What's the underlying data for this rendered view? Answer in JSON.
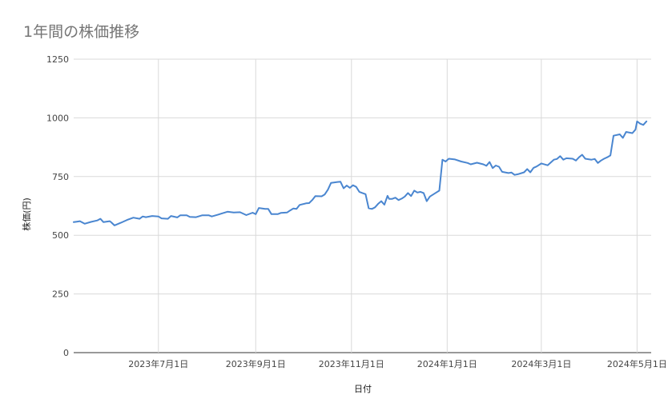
{
  "chart_data": {
    "type": "line",
    "title": "1年間の株価推移",
    "xlabel": "日付",
    "ylabel": "株価(円)",
    "ylim": [
      0,
      1250
    ],
    "yticks": [
      0,
      250,
      500,
      750,
      1000,
      1250
    ],
    "xlim": [
      "2023-05-08",
      "2024-05-10"
    ],
    "xticks": [
      {
        "date": "2023-07-01",
        "label": "2023年7月1日"
      },
      {
        "date": "2023-09-01",
        "label": "2023年9月1日"
      },
      {
        "date": "2023-11-01",
        "label": "2023年11月1日"
      },
      {
        "date": "2024-01-01",
        "label": "2024年1月1日"
      },
      {
        "date": "2024-03-01",
        "label": "2024年3月1日"
      },
      {
        "date": "2024-05-01",
        "label": "2024年5月1日"
      }
    ],
    "grid": true,
    "legend": "none",
    "color": "#4a86d0",
    "series": [
      {
        "points": [
          [
            "2023-05-08",
            556
          ],
          [
            "2023-05-10",
            558
          ],
          [
            "2023-05-12",
            560
          ],
          [
            "2023-05-15",
            549
          ],
          [
            "2023-05-19",
            557
          ],
          [
            "2023-05-23",
            563
          ],
          [
            "2023-05-25",
            570
          ],
          [
            "2023-05-27",
            556
          ],
          [
            "2023-05-31",
            560
          ],
          [
            "2023-06-01",
            555
          ],
          [
            "2023-06-03",
            542
          ],
          [
            "2023-06-07",
            553
          ],
          [
            "2023-06-11",
            565
          ],
          [
            "2023-06-15",
            575
          ],
          [
            "2023-06-19",
            570
          ],
          [
            "2023-06-21",
            580
          ],
          [
            "2023-06-23",
            577
          ],
          [
            "2023-06-27",
            582
          ],
          [
            "2023-07-01",
            580
          ],
          [
            "2023-07-03",
            572
          ],
          [
            "2023-07-07",
            570
          ],
          [
            "2023-07-09",
            582
          ],
          [
            "2023-07-13",
            576
          ],
          [
            "2023-07-15",
            585
          ],
          [
            "2023-07-19",
            585
          ],
          [
            "2023-07-21",
            578
          ],
          [
            "2023-07-25",
            577
          ],
          [
            "2023-07-29",
            585
          ],
          [
            "2023-08-02",
            585
          ],
          [
            "2023-08-04",
            580
          ],
          [
            "2023-08-08",
            588
          ],
          [
            "2023-08-10",
            592
          ],
          [
            "2023-08-14",
            600
          ],
          [
            "2023-08-18",
            597
          ],
          [
            "2023-08-22",
            598
          ],
          [
            "2023-08-26",
            586
          ],
          [
            "2023-08-30",
            596
          ],
          [
            "2023-09-01",
            590
          ],
          [
            "2023-09-03",
            616
          ],
          [
            "2023-09-07",
            612
          ],
          [
            "2023-09-09",
            612
          ],
          [
            "2023-09-11",
            590
          ],
          [
            "2023-09-15",
            590
          ],
          [
            "2023-09-17",
            595
          ],
          [
            "2023-09-21",
            597
          ],
          [
            "2023-09-23",
            606
          ],
          [
            "2023-09-25",
            614
          ],
          [
            "2023-09-27",
            612
          ],
          [
            "2023-09-29",
            629
          ],
          [
            "2023-10-03",
            636
          ],
          [
            "2023-10-05",
            637
          ],
          [
            "2023-10-07",
            650
          ],
          [
            "2023-10-09",
            667
          ],
          [
            "2023-10-13",
            666
          ],
          [
            "2023-10-15",
            674
          ],
          [
            "2023-10-17",
            694
          ],
          [
            "2023-10-19",
            723
          ],
          [
            "2023-10-23",
            727
          ],
          [
            "2023-10-25",
            728
          ],
          [
            "2023-10-27",
            700
          ],
          [
            "2023-10-29",
            712
          ],
          [
            "2023-10-31",
            702
          ],
          [
            "2023-11-02",
            713
          ],
          [
            "2023-11-04",
            706
          ],
          [
            "2023-11-06",
            685
          ],
          [
            "2023-11-08",
            680
          ],
          [
            "2023-11-10",
            675
          ],
          [
            "2023-11-12",
            615
          ],
          [
            "2023-11-14",
            612
          ],
          [
            "2023-11-16",
            619
          ],
          [
            "2023-11-18",
            634
          ],
          [
            "2023-11-20",
            645
          ],
          [
            "2023-11-22",
            630
          ],
          [
            "2023-11-24",
            668
          ],
          [
            "2023-11-25",
            655
          ],
          [
            "2023-11-27",
            655
          ],
          [
            "2023-11-29",
            660
          ],
          [
            "2023-12-01",
            650
          ],
          [
            "2023-12-03",
            656
          ],
          [
            "2023-12-05",
            665
          ],
          [
            "2023-12-07",
            680
          ],
          [
            "2023-12-09",
            667
          ],
          [
            "2023-12-11",
            690
          ],
          [
            "2023-12-13",
            682
          ],
          [
            "2023-12-15",
            685
          ],
          [
            "2023-12-17",
            680
          ],
          [
            "2023-12-19",
            645
          ],
          [
            "2023-12-21",
            665
          ],
          [
            "2023-12-25",
            682
          ],
          [
            "2023-12-27",
            690
          ],
          [
            "2023-12-29",
            822
          ],
          [
            "2023-12-31",
            814
          ],
          [
            "2024-01-02",
            826
          ],
          [
            "2024-01-06",
            823
          ],
          [
            "2024-01-10",
            814
          ],
          [
            "2024-01-14",
            808
          ],
          [
            "2024-01-16",
            802
          ],
          [
            "2024-01-20",
            809
          ],
          [
            "2024-01-24",
            802
          ],
          [
            "2024-01-26",
            796
          ],
          [
            "2024-01-28",
            812
          ],
          [
            "2024-01-30",
            786
          ],
          [
            "2024-02-01",
            797
          ],
          [
            "2024-02-03",
            792
          ],
          [
            "2024-02-05",
            770
          ],
          [
            "2024-02-09",
            765
          ],
          [
            "2024-02-11",
            767
          ],
          [
            "2024-02-13",
            757
          ],
          [
            "2024-02-15",
            760
          ],
          [
            "2024-02-19",
            768
          ],
          [
            "2024-02-21",
            782
          ],
          [
            "2024-02-23",
            768
          ],
          [
            "2024-02-25",
            787
          ],
          [
            "2024-02-27",
            793
          ],
          [
            "2024-03-01",
            806
          ],
          [
            "2024-03-05",
            798
          ],
          [
            "2024-03-07",
            810
          ],
          [
            "2024-03-09",
            822
          ],
          [
            "2024-03-11",
            825
          ],
          [
            "2024-03-13",
            837
          ],
          [
            "2024-03-15",
            822
          ],
          [
            "2024-03-17",
            828
          ],
          [
            "2024-03-21",
            826
          ],
          [
            "2024-03-23",
            818
          ],
          [
            "2024-03-25",
            832
          ],
          [
            "2024-03-27",
            843
          ],
          [
            "2024-03-29",
            826
          ],
          [
            "2024-04-02",
            822
          ],
          [
            "2024-04-04",
            825
          ],
          [
            "2024-04-06",
            808
          ],
          [
            "2024-04-08",
            818
          ],
          [
            "2024-04-10",
            826
          ],
          [
            "2024-04-12",
            832
          ],
          [
            "2024-04-14",
            840
          ],
          [
            "2024-04-16",
            924
          ],
          [
            "2024-04-20",
            930
          ],
          [
            "2024-04-22",
            915
          ],
          [
            "2024-04-24",
            940
          ],
          [
            "2024-04-28",
            935
          ],
          [
            "2024-04-30",
            950
          ],
          [
            "2024-05-01",
            985
          ],
          [
            "2024-05-03",
            975
          ],
          [
            "2024-05-05",
            970
          ],
          [
            "2024-05-07",
            985
          ]
        ]
      }
    ]
  }
}
